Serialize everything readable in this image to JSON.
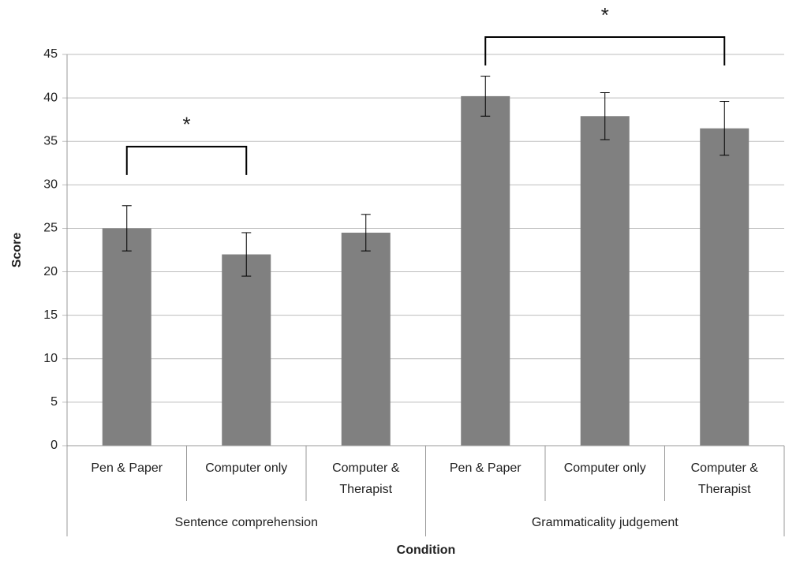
{
  "chart_data": {
    "type": "bar",
    "y_label": "Score",
    "x_label": "Condition",
    "groups": [
      {
        "name": "Sentence comprehension",
        "categories": [
          "Pen & Paper",
          "Computer only",
          "Computer & Therapist"
        ]
      },
      {
        "name": "Grammaticality judgement",
        "categories": [
          "Pen & Paper",
          "Computer only",
          "Computer & Therapist"
        ]
      }
    ],
    "series": [
      {
        "color": "#808080",
        "values": [
          25,
          22,
          24.5,
          40.2,
          37.9,
          36.5
        ],
        "errors": [
          2.6,
          2.5,
          2.1,
          2.3,
          2.7,
          3.1
        ]
      }
    ],
    "annotations": [
      {
        "text": "*",
        "from": 0,
        "to": 1,
        "y": 34.4
      },
      {
        "text": "*",
        "from": 3,
        "to": 5,
        "y": 47
      }
    ],
    "ylim": [
      0,
      45
    ],
    "yticks": [
      0,
      5,
      10,
      15,
      20,
      25,
      30,
      35,
      40,
      45
    ],
    "grid": true
  }
}
